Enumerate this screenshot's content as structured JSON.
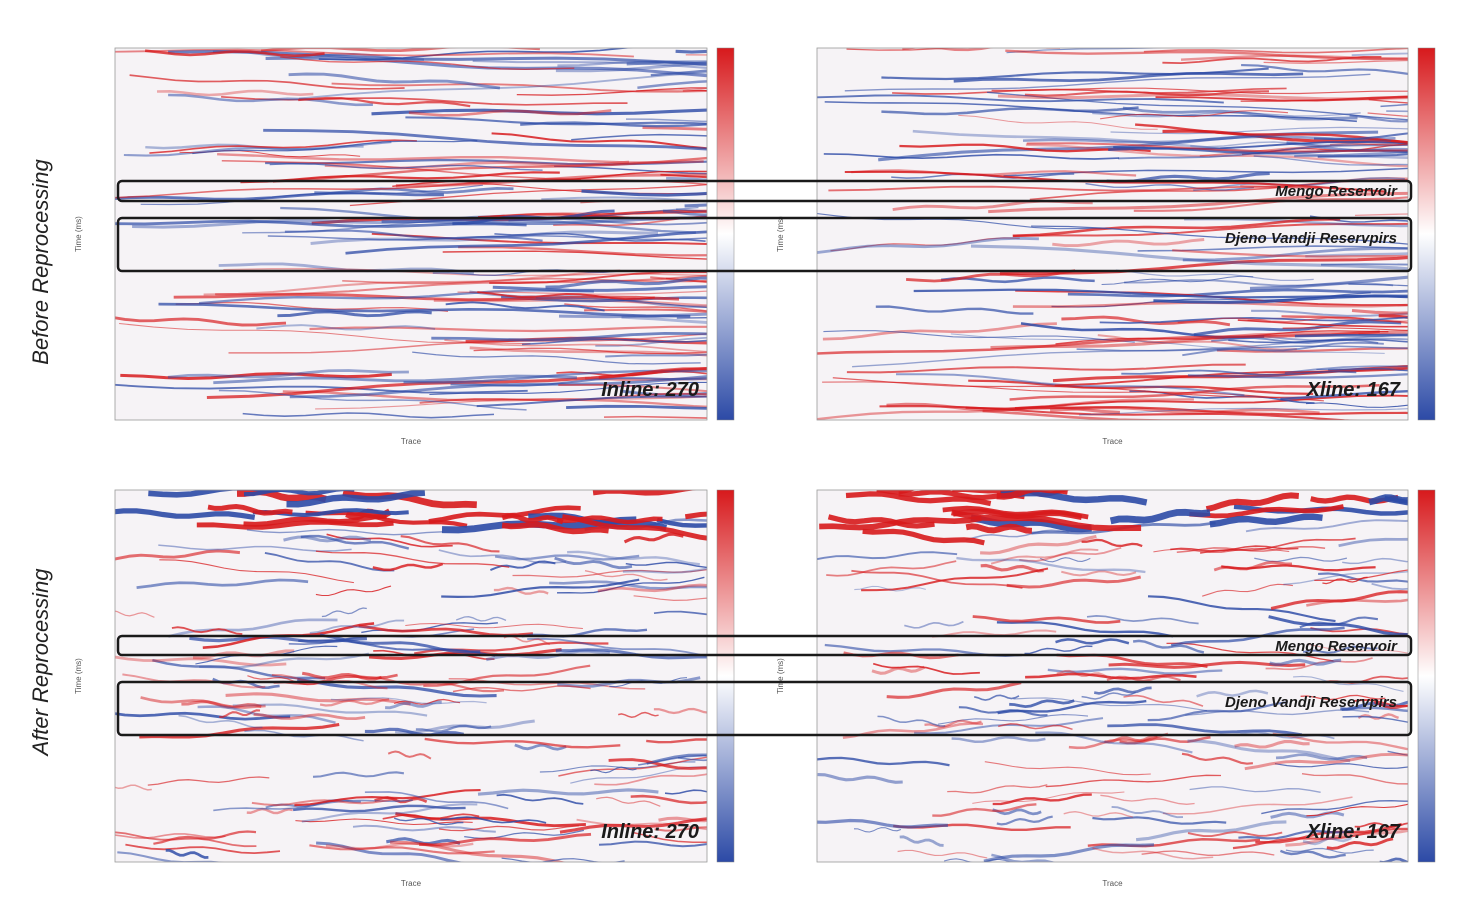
{
  "figure": {
    "row_labels": [
      "Before Reprocessing",
      "After Reprocessing"
    ],
    "panels": [
      {
        "label": "Inline: 270",
        "x_axis_label": "Trace",
        "y_axis_label": "Time (ms)"
      },
      {
        "label": "Xline: 167",
        "x_axis_label": "Trace",
        "y_axis_label": "Time (ms)"
      },
      {
        "label": "Inline: 270",
        "x_axis_label": "Trace",
        "y_axis_label": "Time (ms)"
      },
      {
        "label": "Xline: 167",
        "x_axis_label": "Trace",
        "y_axis_label": "Time (ms)"
      }
    ],
    "reservoirs": [
      "Mengo Reservoir",
      "Djeno Vandji Reservpirs"
    ]
  }
}
